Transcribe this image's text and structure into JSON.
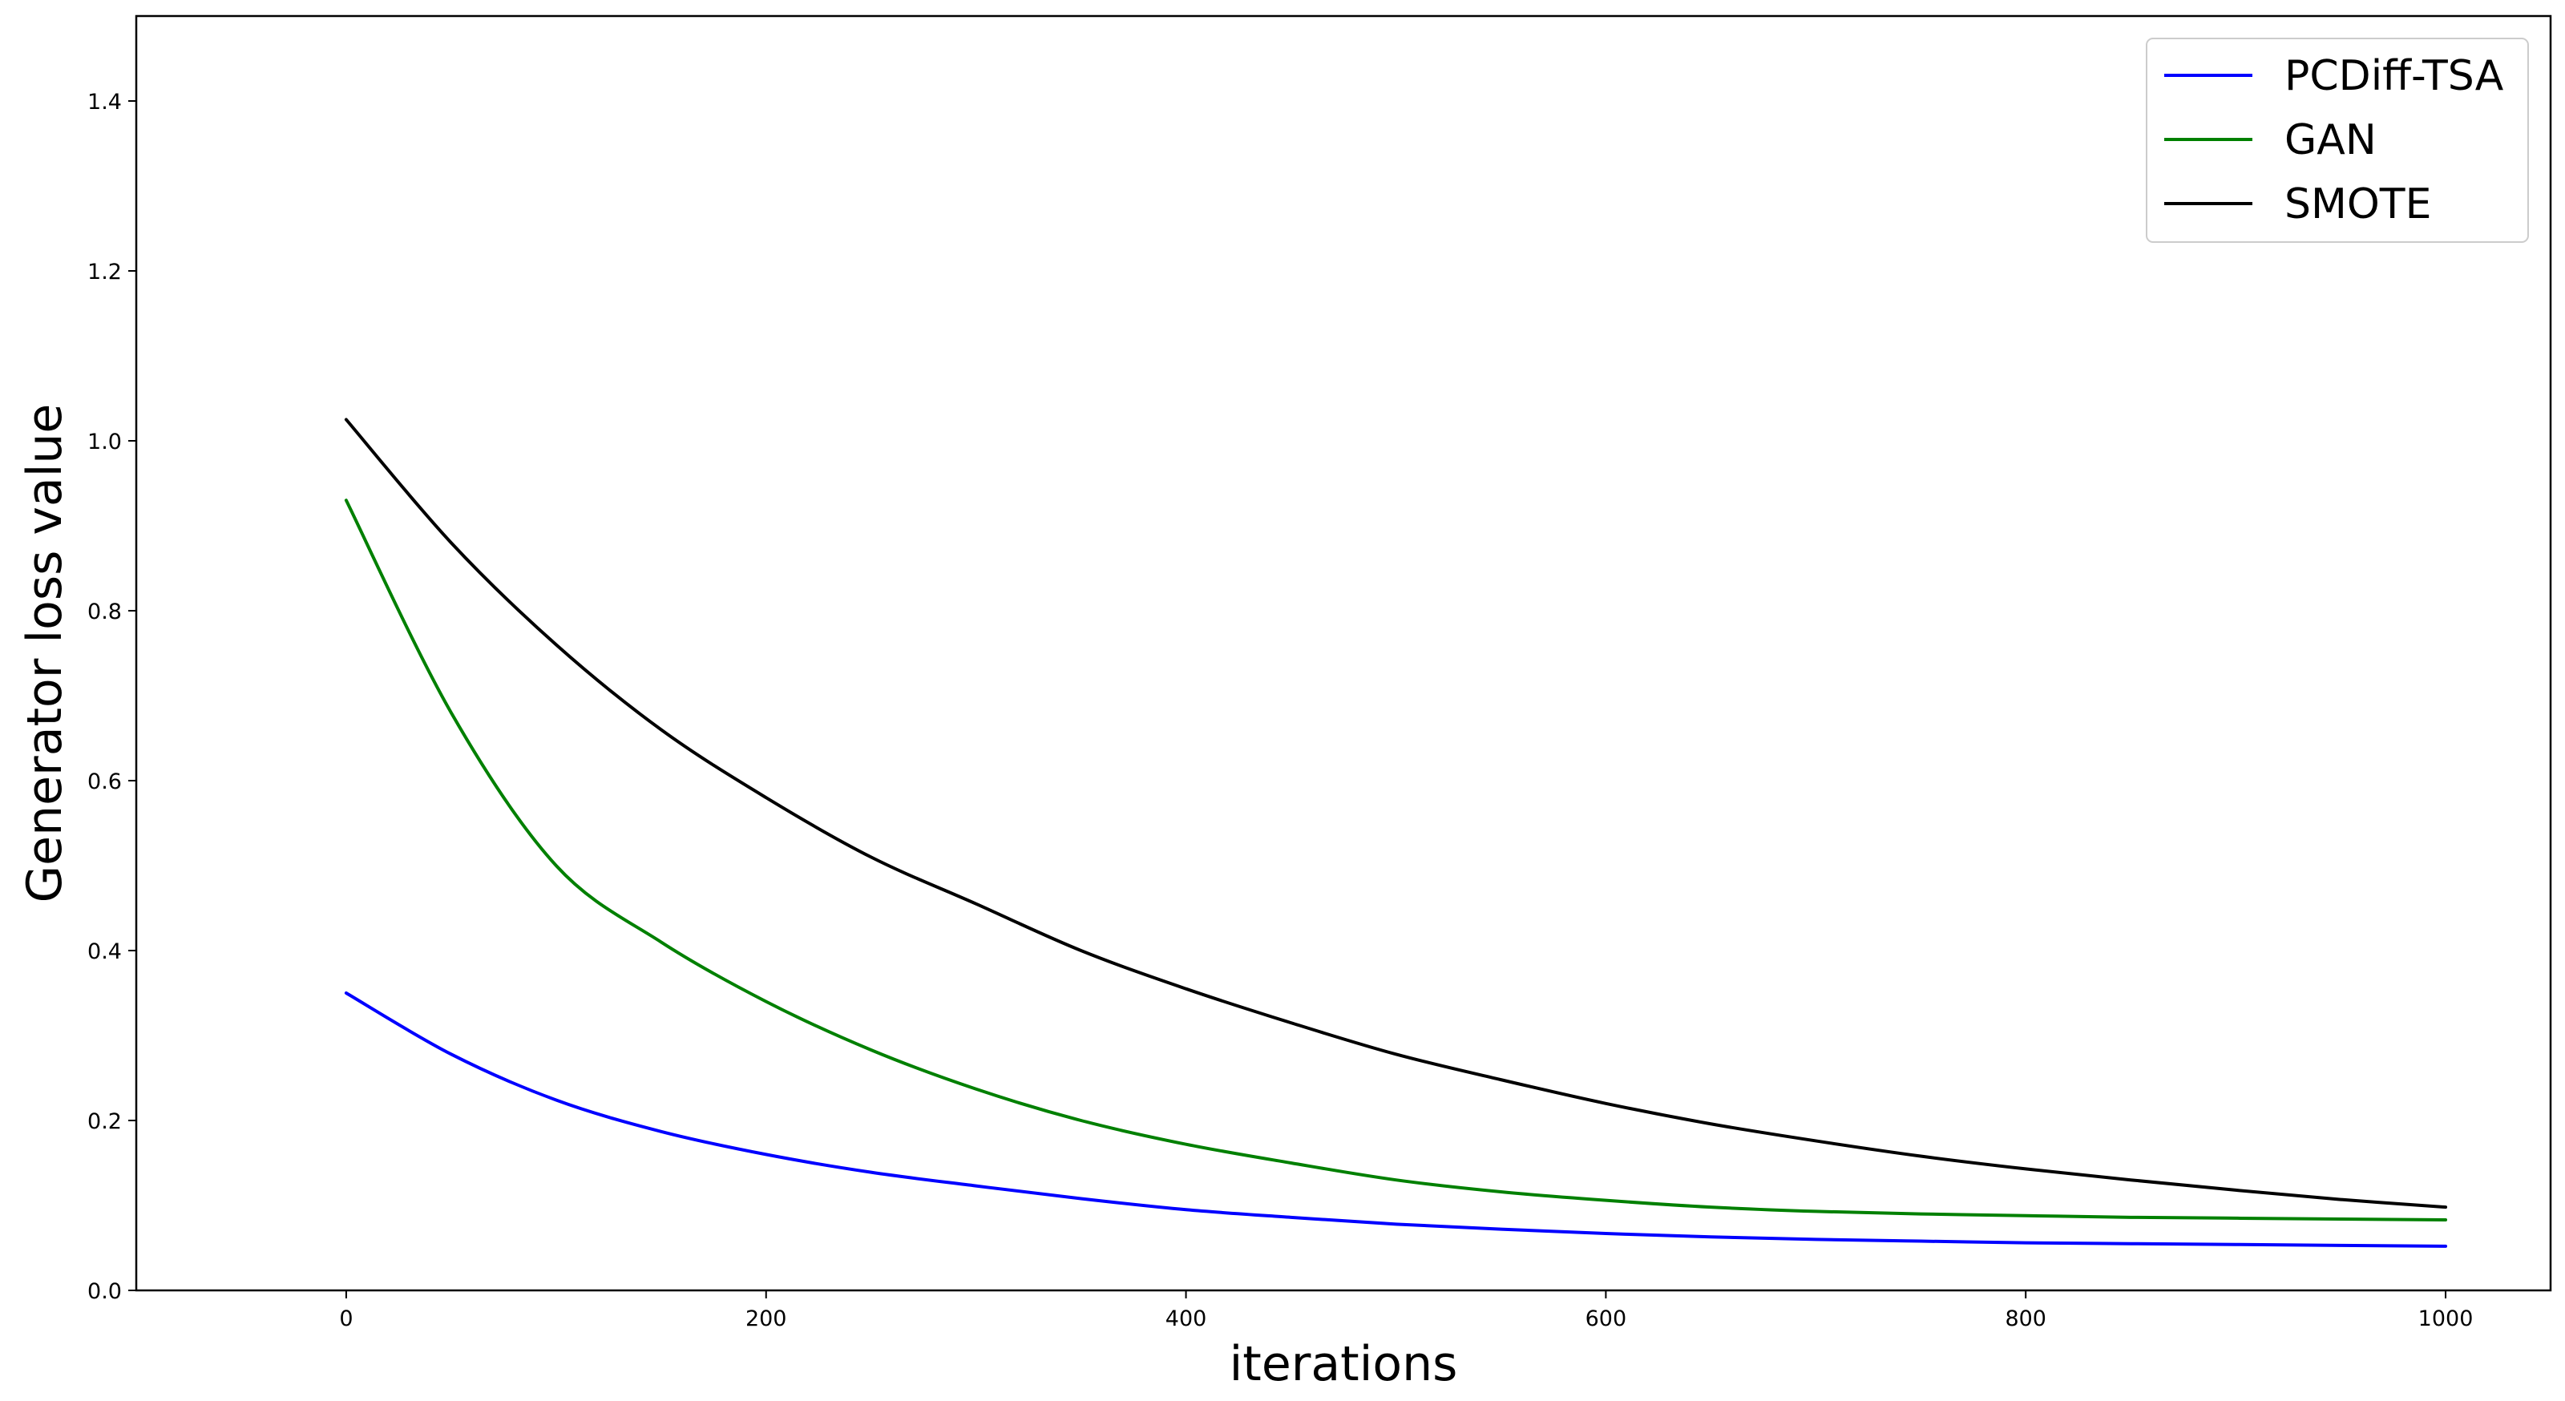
{
  "chart_data": {
    "type": "line",
    "title": "",
    "xlabel": "iterations",
    "ylabel": "Generator loss value",
    "xlim": [
      -100,
      1050
    ],
    "ylim": [
      0.0,
      1.5
    ],
    "xticks": [
      0,
      200,
      400,
      600,
      800,
      1000
    ],
    "xtick_labels": [
      "0",
      "200",
      "400",
      "600",
      "800",
      "1000"
    ],
    "yticks": [
      0.0,
      0.2,
      0.4,
      0.6,
      0.8,
      1.0,
      1.2,
      1.4
    ],
    "ytick_labels": [
      "0.0",
      "0.2",
      "0.4",
      "0.6",
      "0.8",
      "1.0",
      "1.2",
      "1.4"
    ],
    "grid": false,
    "legend_position": "top-right",
    "x": [
      0,
      50,
      100,
      150,
      200,
      250,
      300,
      350,
      400,
      450,
      500,
      550,
      600,
      650,
      700,
      750,
      800,
      850,
      900,
      950,
      1000
    ],
    "series": [
      {
        "name": "PCDiff-TSA",
        "color": "#0000ff",
        "values": [
          0.35,
          0.278,
          0.224,
          0.187,
          0.16,
          0.139,
          0.123,
          0.108,
          0.095,
          0.086,
          0.078,
          0.072,
          0.067,
          0.063,
          0.06,
          0.058,
          0.056,
          0.055,
          0.054,
          0.053,
          0.052
        ]
      },
      {
        "name": "GAN",
        "color": "#008000",
        "values": [
          0.93,
          0.68,
          0.5,
          0.41,
          0.34,
          0.283,
          0.237,
          0.2,
          0.172,
          0.15,
          0.13,
          0.116,
          0.106,
          0.098,
          0.093,
          0.09,
          0.088,
          0.086,
          0.085,
          0.084,
          0.083
        ]
      },
      {
        "name": "SMOTE",
        "color": "#000000",
        "values": [
          1.025,
          0.88,
          0.76,
          0.66,
          0.58,
          0.51,
          0.455,
          0.4,
          0.355,
          0.315,
          0.278,
          0.248,
          0.22,
          0.196,
          0.176,
          0.158,
          0.143,
          0.13,
          0.118,
          0.107,
          0.098
        ]
      }
    ]
  }
}
